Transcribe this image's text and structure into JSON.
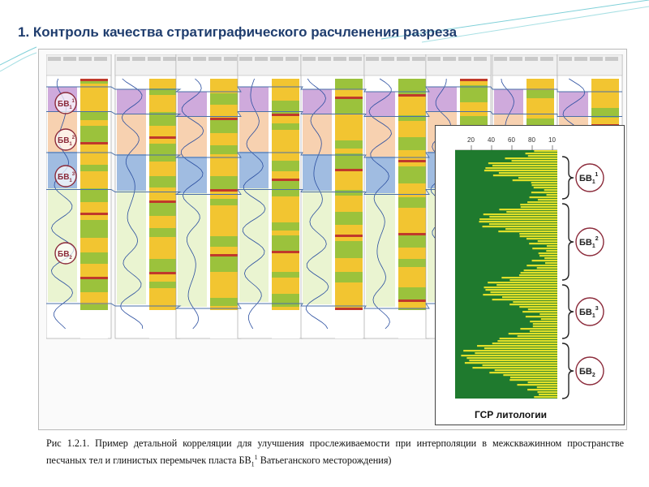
{
  "slide": {
    "title": "1. Контроль качества стратиграфического расчленения разреза"
  },
  "correlation_panel": {
    "layer_markers": [
      {
        "base": "БВ",
        "sub": "1",
        "sup": "1"
      },
      {
        "base": "БВ",
        "sub": "1",
        "sup": "2"
      },
      {
        "base": "БВ",
        "sub": "1",
        "sup": "3"
      },
      {
        "base": "БВ",
        "sub": "2",
        "sup": ""
      }
    ]
  },
  "gsr_panel": {
    "title": "ГСР литологии",
    "axis_ticks": [
      "20",
      "40",
      "60",
      "80",
      "10"
    ],
    "layers": [
      {
        "base": "БВ",
        "sub": "1",
        "sup": "1"
      },
      {
        "base": "БВ",
        "sub": "1",
        "sup": "2"
      },
      {
        "base": "БВ",
        "sub": "1",
        "sup": "3"
      },
      {
        "base": "БВ",
        "sub": "2",
        "sup": ""
      }
    ]
  },
  "caption": {
    "part1": "Рис 1.2.1. Пример детальной корреляции для улучшения прослеживаемости при интерполяции в межскважинном пространстве песчаных тел и глинистых перемычек пласта БВ",
    "sub": "1",
    "sup": "1",
    "part2": " Ватьеганского месторождения)"
  },
  "colors": {
    "title": "#1f3d6e",
    "sand": "#f2c531",
    "shale_green": "#9bc23c",
    "dark_green": "#1f7a2e",
    "layer_purple": "#c79bd6",
    "layer_peach": "#f6c9a2",
    "layer_blue": "#8fb0dc",
    "red_band": "#c0392b",
    "marker_circle": "#8b2a3a"
  }
}
